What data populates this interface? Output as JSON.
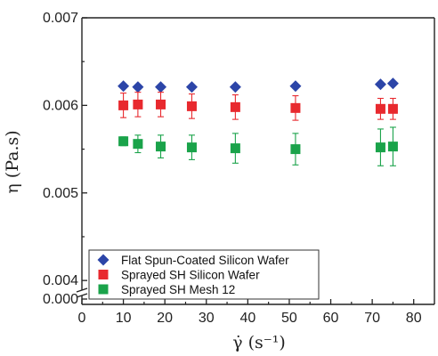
{
  "chart_data": {
    "type": "scatter",
    "title": "",
    "xlabel": "γ̇ (s⁻¹)",
    "ylabel": "η (Pa.s)",
    "xlim": [
      0,
      85
    ],
    "x_ticks": [
      0,
      10,
      20,
      30,
      40,
      50,
      60,
      70,
      80
    ],
    "ylim": [
      0.0039,
      0.007
    ],
    "y_ticks": [
      "0.007",
      "0.006",
      "0.005",
      "0.004",
      "0.000"
    ],
    "y_axis_break": true,
    "grid": false,
    "legend_position": "bottom-left",
    "series": [
      {
        "name": "Flat Spun-Coated Silicon Wafer",
        "marker": "diamond",
        "color": "#2c45a8",
        "x": [
          10,
          13.5,
          19,
          26.5,
          37,
          51.5,
          72,
          75
        ],
        "y": [
          0.00622,
          0.00621,
          0.00621,
          0.00621,
          0.00621,
          0.00622,
          0.00624,
          0.00625
        ],
        "err": [
          0,
          0,
          0,
          0,
          0,
          0,
          0,
          0
        ]
      },
      {
        "name": "Sprayed SH Silicon Wafer",
        "marker": "square",
        "color": "#e8292e",
        "x": [
          10,
          13.5,
          19,
          26.5,
          37,
          51.5,
          72,
          75
        ],
        "y": [
          0.006,
          0.00601,
          0.00601,
          0.00599,
          0.00598,
          0.00597,
          0.00596,
          0.00596
        ],
        "err": [
          0.00014,
          0.00014,
          0.00014,
          0.00014,
          0.00014,
          0.00014,
          0.00012,
          0.00012
        ]
      },
      {
        "name": "Sprayed SH Mesh 12",
        "marker": "square",
        "color": "#1aa34a",
        "x": [
          10,
          13.5,
          19,
          26.5,
          37,
          51.5,
          72,
          75
        ],
        "y": [
          0.00559,
          0.00556,
          0.00553,
          0.00552,
          0.00551,
          0.0055,
          0.00552,
          0.00553
        ],
        "err": [
          5e-05,
          0.0001,
          0.00013,
          0.00014,
          0.00017,
          0.00018,
          0.00021,
          0.00022
        ]
      }
    ]
  }
}
